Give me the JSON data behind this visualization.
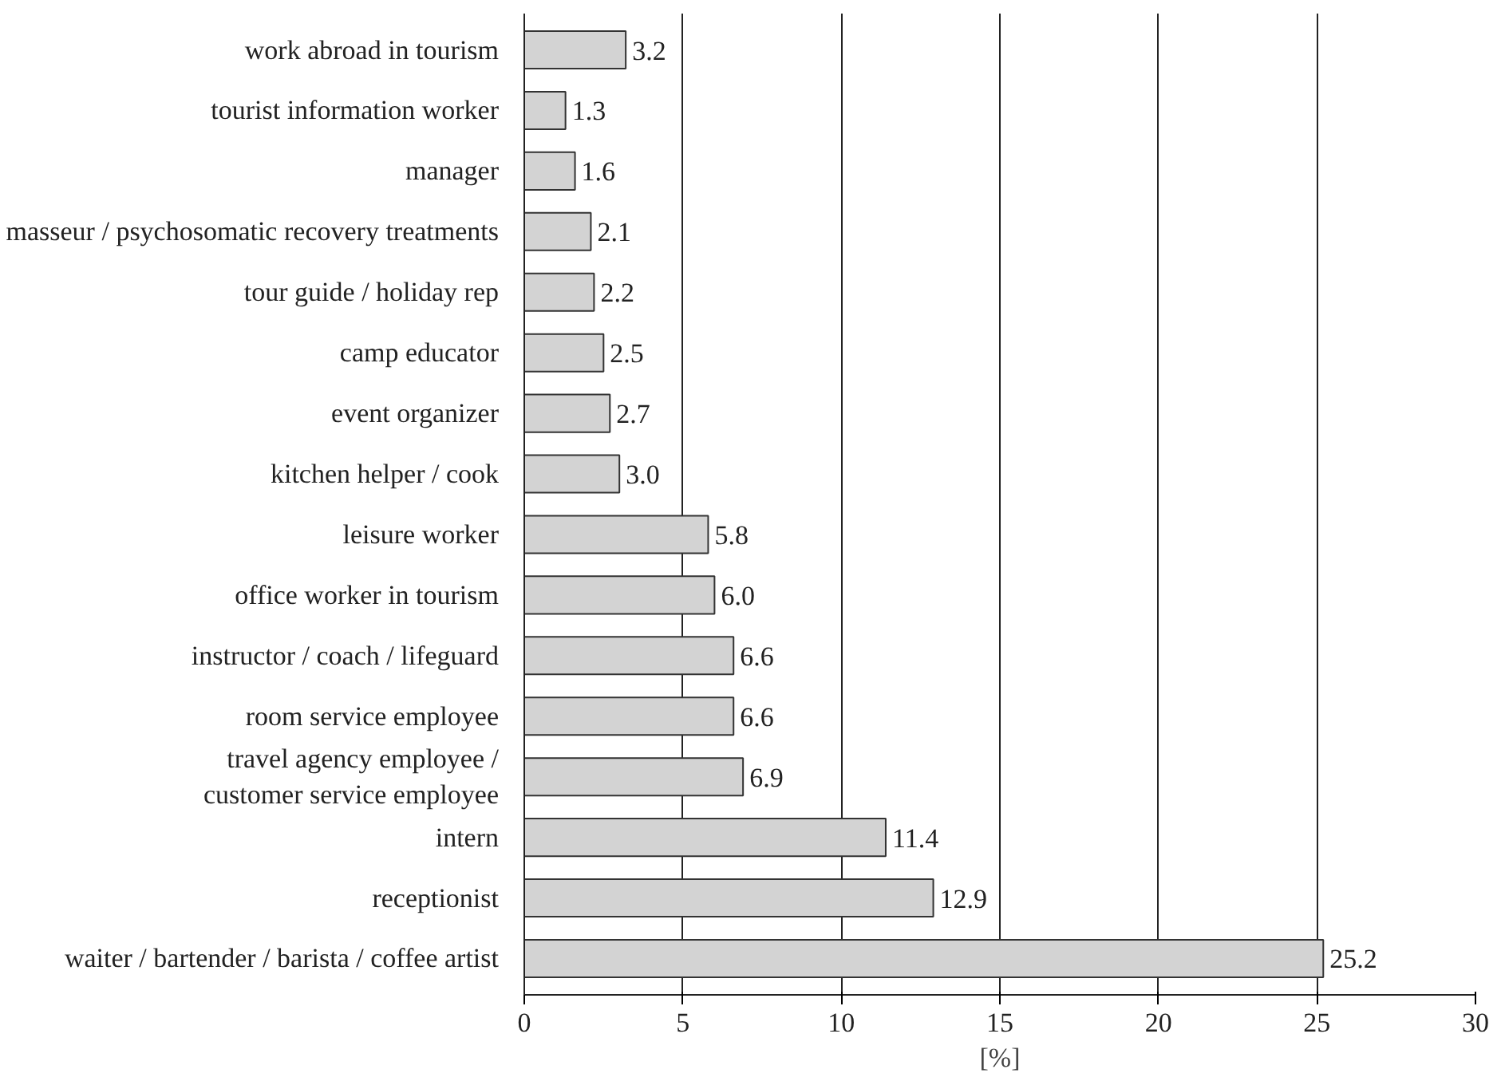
{
  "chart_data": {
    "type": "bar",
    "orientation": "horizontal",
    "xlabel": "[%]",
    "categories": [
      "work abroad in tourism",
      "tourist information worker",
      "manager",
      "masseur / psychosomatic recovery treatments",
      "tour guide / holiday rep",
      "camp educator",
      "event organizer",
      "kitchen helper / cook",
      "leisure worker",
      "office worker in tourism",
      "instructor / coach / lifeguard",
      "room service employee",
      "travel agency employee /\ncustomer service employee",
      "intern",
      "receptionist",
      "waiter / bartender / barista / coffee artist"
    ],
    "values": [
      3.2,
      1.3,
      1.6,
      2.1,
      2.2,
      2.5,
      2.7,
      3.0,
      5.8,
      6.0,
      6.6,
      6.6,
      6.9,
      11.4,
      12.9,
      25.2
    ],
    "value_labels": [
      "3.2",
      "1.3",
      "1.6",
      "2.1",
      "2.2",
      "2.5",
      "2.7",
      "3.0",
      "5.8",
      "6.0",
      "6.6",
      "6.6",
      "6.9",
      "11.4",
      "12.9",
      "25.2"
    ],
    "color": "#d3d3d3",
    "xlim": [
      0,
      30
    ],
    "xticks": [
      0,
      5,
      10,
      15,
      20,
      25,
      30
    ],
    "grid": "x"
  }
}
